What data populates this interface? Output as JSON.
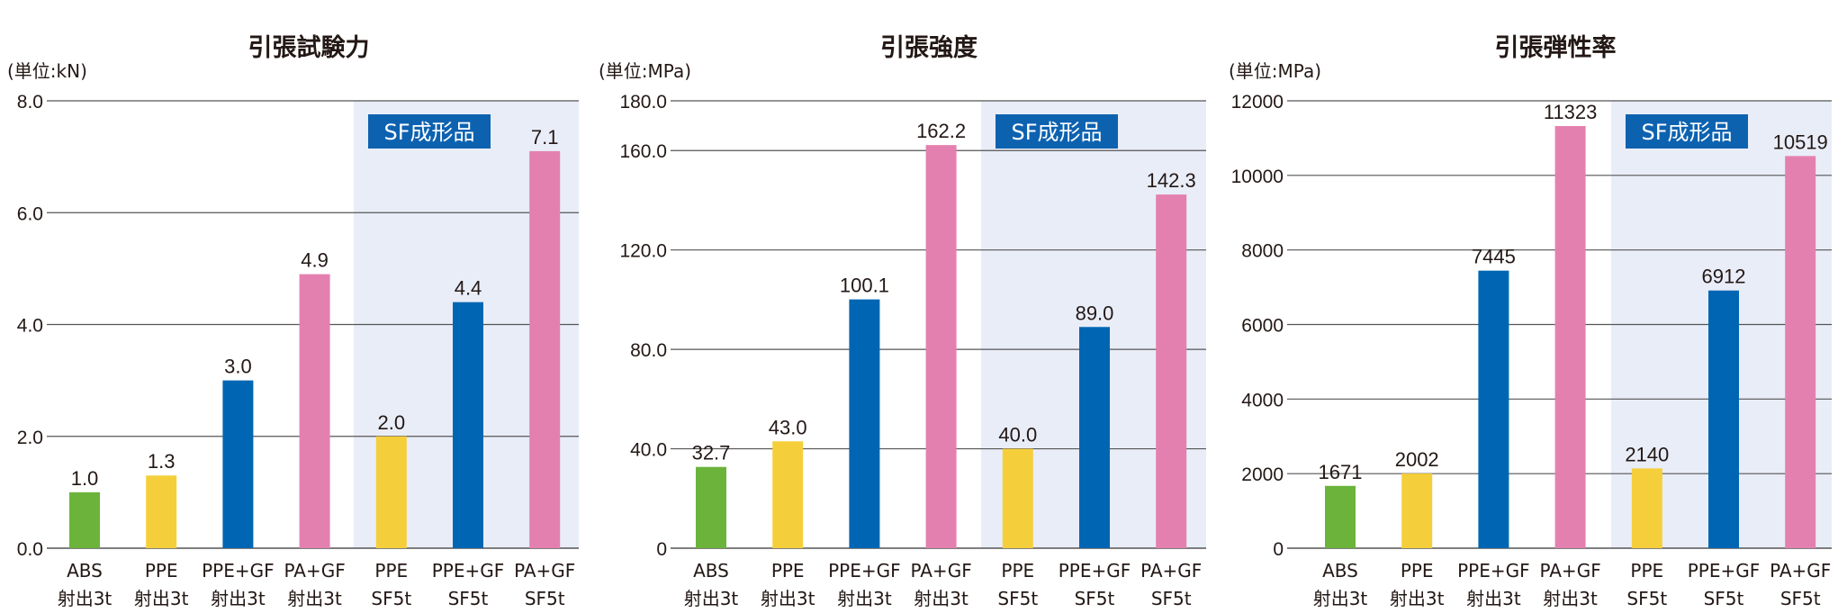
{
  "colors": {
    "green": "#6bb33a",
    "yellow": "#f5cf3b",
    "blue": "#0066b3",
    "pink": "#e480b0",
    "sf_band": "#e9edf8",
    "sf_label_bg": "#0d62b0",
    "grid": "#555555"
  },
  "chart_data": [
    {
      "type": "bar",
      "title": "引張試験力",
      "unit": "(単位:kN)",
      "ylim": [
        0,
        8
      ],
      "yticks": [
        "0.0",
        "2.0",
        "4.0",
        "6.0",
        "8.0"
      ],
      "ytick_values": [
        0,
        2,
        4,
        6,
        8
      ],
      "categories": [
        [
          "ABS",
          "射出3t"
        ],
        [
          "PPE",
          "射出3t"
        ],
        [
          "PPE+GF",
          "射出3t"
        ],
        [
          "PA+GF",
          "射出3t"
        ],
        [
          "PPE",
          "SF5t"
        ],
        [
          "PPE+GF",
          "SF5t"
        ],
        [
          "PA+GF",
          "SF5t"
        ]
      ],
      "values": [
        1.0,
        1.3,
        3.0,
        4.9,
        2.0,
        4.4,
        7.1
      ],
      "value_labels": [
        "1.0",
        "1.3",
        "3.0",
        "4.9",
        "2.0",
        "4.4",
        "7.1"
      ],
      "bar_colors": [
        "green",
        "yellow",
        "blue",
        "pink",
        "yellow",
        "blue",
        "pink"
      ],
      "sf_label": "SF成形品",
      "grid": true
    },
    {
      "type": "bar",
      "title": "引張強度",
      "unit": "(単位:MPa)",
      "ylim": [
        0,
        180
      ],
      "yticks": [
        "0",
        "40.0",
        "80.0",
        "120.0",
        "160.0",
        "180.0"
      ],
      "ytick_values": [
        0,
        40,
        80,
        120,
        160,
        180
      ],
      "categories": [
        [
          "ABS",
          "射出3t"
        ],
        [
          "PPE",
          "射出3t"
        ],
        [
          "PPE+GF",
          "射出3t"
        ],
        [
          "PA+GF",
          "射出3t"
        ],
        [
          "PPE",
          "SF5t"
        ],
        [
          "PPE+GF",
          "SF5t"
        ],
        [
          "PA+GF",
          "SF5t"
        ]
      ],
      "values": [
        32.7,
        43.0,
        100.1,
        162.2,
        40.0,
        89.0,
        142.3
      ],
      "value_labels": [
        "32.7",
        "43.0",
        "100.1",
        "162.2",
        "40.0",
        "89.0",
        "142.3"
      ],
      "bar_colors": [
        "green",
        "yellow",
        "blue",
        "pink",
        "yellow",
        "blue",
        "pink"
      ],
      "sf_label": "SF成形品",
      "grid": true
    },
    {
      "type": "bar",
      "title": "引張弾性率",
      "unit": "(単位:MPa)",
      "ylim": [
        0,
        12000
      ],
      "yticks": [
        "0",
        "2000",
        "4000",
        "6000",
        "8000",
        "10000",
        "12000"
      ],
      "ytick_values": [
        0,
        2000,
        4000,
        6000,
        8000,
        10000,
        12000
      ],
      "categories": [
        [
          "ABS",
          "射出3t"
        ],
        [
          "PPE",
          "射出3t"
        ],
        [
          "PPE+GF",
          "射出3t"
        ],
        [
          "PA+GF",
          "射出3t"
        ],
        [
          "PPE",
          "SF5t"
        ],
        [
          "PPE+GF",
          "SF5t"
        ],
        [
          "PA+GF",
          "SF5t"
        ]
      ],
      "values": [
        1671,
        2002,
        7445,
        11323,
        2140,
        6912,
        10519
      ],
      "value_labels": [
        "1671",
        "2002",
        "7445",
        "11323",
        "2140",
        "6912",
        "10519"
      ],
      "bar_colors": [
        "green",
        "yellow",
        "blue",
        "pink",
        "yellow",
        "blue",
        "pink"
      ],
      "sf_label": "SF成形品",
      "grid": true
    }
  ]
}
